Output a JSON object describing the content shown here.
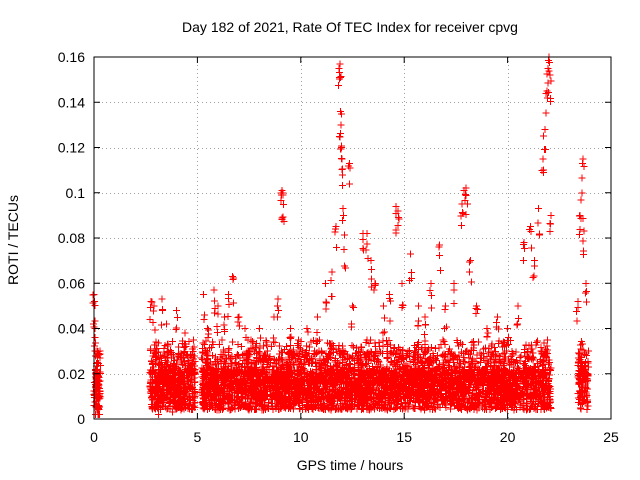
{
  "chart_data": {
    "type": "scatter",
    "title": "Day 182 of 2021, Rate Of TEC Index for receiver cpvg",
    "xlabel": "GPS time / hours",
    "ylabel": "ROTI / TECUs",
    "xlim": [
      0,
      25
    ],
    "ylim": [
      0,
      0.16
    ],
    "xticks": [
      0,
      5,
      10,
      15,
      20,
      25
    ],
    "xtick_labels": [
      "0",
      "5",
      "10",
      "15",
      "20",
      "25"
    ],
    "yticks": [
      0,
      0.02,
      0.04,
      0.06,
      0.08,
      0.1,
      0.12,
      0.14,
      0.16
    ],
    "ytick_labels": [
      "0",
      "0.02",
      "0.04",
      "0.06",
      "0.08",
      "0.1",
      "0.12",
      "0.14",
      "0.16"
    ],
    "grid": true,
    "marker": "+",
    "marker_color": "#ff0000",
    "observation_intervals_hours": [
      [
        0.0,
        0.3
      ],
      [
        2.7,
        4.9
      ],
      [
        5.2,
        22.1
      ],
      [
        23.4,
        23.9
      ]
    ],
    "series": [
      {
        "name": "ROTI",
        "color": "#ff0000",
        "points": [
          [
            0.0,
            0.055
          ],
          [
            0.02,
            0.052
          ],
          [
            0.05,
            0.04
          ],
          [
            0.08,
            0.02
          ],
          [
            0.1,
            0.012
          ],
          [
            0.12,
            0.008
          ],
          [
            0.15,
            0.03
          ],
          [
            0.18,
            0.025
          ],
          [
            0.2,
            0.01
          ],
          [
            0.22,
            0.006
          ],
          [
            0.25,
            0.015
          ],
          [
            0.28,
            0.03
          ],
          [
            2.75,
            0.052
          ],
          [
            2.9,
            0.05
          ],
          [
            3.0,
            0.02
          ],
          [
            3.1,
            0.01
          ],
          [
            3.3,
            0.053
          ],
          [
            3.5,
            0.042
          ],
          [
            3.7,
            0.03
          ],
          [
            3.8,
            0.015
          ],
          [
            4.0,
            0.048
          ],
          [
            4.2,
            0.02
          ],
          [
            4.4,
            0.038
          ],
          [
            4.6,
            0.01
          ],
          [
            4.8,
            0.035
          ],
          [
            5.3,
            0.055
          ],
          [
            5.5,
            0.04
          ],
          [
            5.8,
            0.057
          ],
          [
            6.0,
            0.05
          ],
          [
            6.3,
            0.045
          ],
          [
            6.5,
            0.055
          ],
          [
            6.7,
            0.063
          ],
          [
            7.0,
            0.045
          ],
          [
            7.3,
            0.04
          ],
          [
            7.6,
            0.035
          ],
          [
            8.0,
            0.04
          ],
          [
            8.4,
            0.03
          ],
          [
            8.7,
            0.045
          ],
          [
            8.9,
            0.053
          ],
          [
            9.05,
            0.1
          ],
          [
            9.1,
            0.101
          ],
          [
            9.15,
            0.099
          ],
          [
            9.5,
            0.04
          ],
          [
            9.9,
            0.035
          ],
          [
            10.3,
            0.04
          ],
          [
            10.8,
            0.045
          ],
          [
            11.2,
            0.06
          ],
          [
            11.5,
            0.065
          ],
          [
            11.7,
            0.085
          ],
          [
            11.85,
            0.155
          ],
          [
            11.9,
            0.157
          ],
          [
            11.92,
            0.136
          ],
          [
            11.95,
            0.13
          ],
          [
            11.97,
            0.12
          ],
          [
            12.0,
            0.115
          ],
          [
            12.05,
            0.093
          ],
          [
            12.1,
            0.075
          ],
          [
            12.35,
            0.113
          ],
          [
            12.5,
            0.05
          ],
          [
            13.0,
            0.082
          ],
          [
            13.2,
            0.082
          ],
          [
            13.4,
            0.07
          ],
          [
            13.6,
            0.06
          ],
          [
            14.0,
            0.05
          ],
          [
            14.3,
            0.055
          ],
          [
            14.6,
            0.094
          ],
          [
            14.7,
            0.092
          ],
          [
            14.9,
            0.06
          ],
          [
            15.3,
            0.073
          ],
          [
            15.7,
            0.05
          ],
          [
            16.0,
            0.045
          ],
          [
            16.3,
            0.06
          ],
          [
            16.7,
            0.077
          ],
          [
            17.0,
            0.05
          ],
          [
            17.4,
            0.06
          ],
          [
            17.8,
            0.095
          ],
          [
            17.9,
            0.101
          ],
          [
            18.0,
            0.102
          ],
          [
            18.2,
            0.07
          ],
          [
            18.5,
            0.05
          ],
          [
            19.0,
            0.04
          ],
          [
            19.5,
            0.045
          ],
          [
            20.0,
            0.04
          ],
          [
            20.5,
            0.05
          ],
          [
            20.8,
            0.078
          ],
          [
            21.1,
            0.085
          ],
          [
            21.3,
            0.07
          ],
          [
            21.5,
            0.093
          ],
          [
            21.7,
            0.115
          ],
          [
            21.8,
            0.128
          ],
          [
            21.9,
            0.145
          ],
          [
            21.95,
            0.155
          ],
          [
            22.0,
            0.16
          ],
          [
            22.05,
            0.152
          ],
          [
            22.1,
            0.09
          ],
          [
            23.4,
            0.052
          ],
          [
            23.5,
            0.09
          ],
          [
            23.6,
            0.1
          ],
          [
            23.65,
            0.115
          ],
          [
            23.7,
            0.083
          ],
          [
            23.8,
            0.06
          ],
          [
            23.9,
            0.03
          ]
        ]
      }
    ]
  }
}
